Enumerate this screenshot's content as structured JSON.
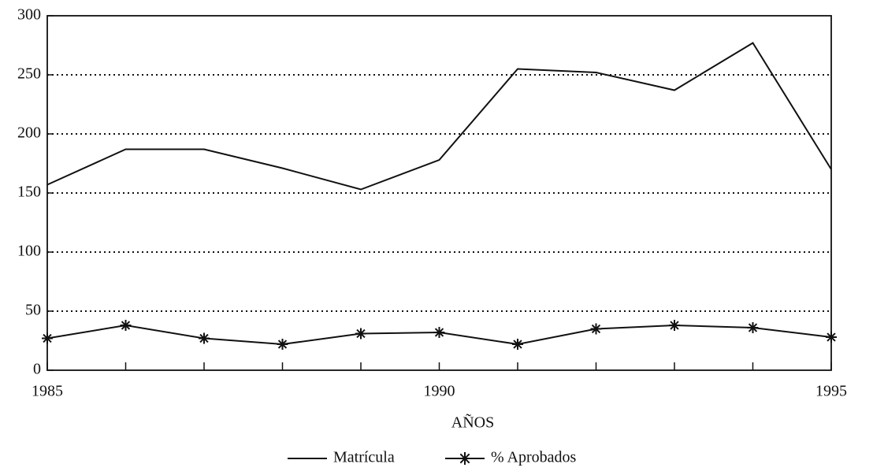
{
  "chart_data": {
    "type": "line",
    "x": [
      1985,
      1986,
      1987,
      1988,
      1989,
      1990,
      1991,
      1992,
      1993,
      1994,
      1995
    ],
    "xlim": [
      1985,
      1995
    ],
    "xticks": [
      1985,
      1990,
      1995
    ],
    "ylim": [
      0,
      300
    ],
    "yticks": [
      0,
      50,
      100,
      150,
      200,
      250,
      300
    ],
    "x_label": "AÑOS",
    "grid": true,
    "legend": "bottom",
    "series": [
      {
        "name": "Matrícula",
        "color": "#111111",
        "marker": "none",
        "values": [
          157,
          187,
          187,
          171,
          153,
          178,
          255,
          252,
          237,
          277,
          170
        ]
      },
      {
        "name": "% Aprobados",
        "color": "#111111",
        "marker": "star",
        "values": [
          27,
          38,
          27,
          22,
          31,
          32,
          22,
          35,
          38,
          36,
          28
        ]
      }
    ]
  }
}
